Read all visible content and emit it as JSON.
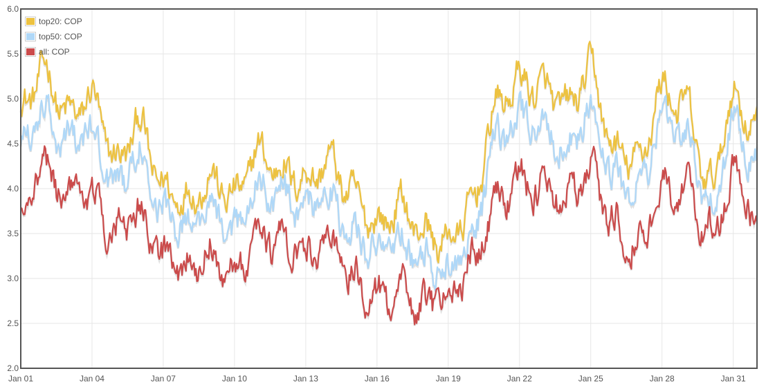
{
  "chart_data": {
    "type": "line",
    "title": "",
    "xlabel": "",
    "ylabel": "",
    "ylim": [
      2.0,
      6.0
    ],
    "yticks": [
      "2.0",
      "2.5",
      "3.0",
      "3.5",
      "4.0",
      "4.5",
      "5.0",
      "5.5",
      "6.0"
    ],
    "xlim": [
      "Jan 01",
      "Feb 01"
    ],
    "xticks": [
      "Jan 01",
      "Jan 04",
      "Jan 07",
      "Jan 10",
      "Jan 13",
      "Jan 16",
      "Jan 19",
      "Jan 22",
      "Jan 25",
      "Jan 28",
      "Jan 31"
    ],
    "grid": true,
    "legend_position": "top-left",
    "series": [
      {
        "name": "top20: COP",
        "color": "#edc240",
        "daily_values": [
          4.9,
          5.3,
          4.8,
          5.0,
          4.3,
          4.7,
          4.0,
          3.9,
          4.1,
          3.9,
          4.4,
          4.2,
          4.1,
          4.3,
          3.9,
          3.6,
          3.8,
          3.5,
          3.4,
          3.8,
          4.9,
          5.2,
          5.1,
          4.9,
          5.3,
          4.4,
          4.3,
          5.1,
          4.9,
          4.0,
          5.0,
          4.7
        ]
      },
      {
        "name": "top50: COP",
        "color": "#afd8f8",
        "daily_values": [
          4.5,
          4.9,
          4.5,
          4.6,
          4.0,
          4.4,
          3.7,
          3.6,
          3.8,
          3.5,
          4.0,
          3.9,
          3.8,
          3.9,
          3.5,
          3.3,
          3.4,
          3.2,
          3.1,
          3.5,
          4.5,
          4.8,
          4.7,
          4.5,
          4.9,
          4.1,
          4.0,
          4.7,
          4.6,
          3.7,
          4.7,
          4.3
        ]
      },
      {
        "name": "all: COP",
        "color": "#cb4b4b",
        "daily_values": [
          3.8,
          4.2,
          4.0,
          3.9,
          3.5,
          3.7,
          3.2,
          3.1,
          3.3,
          3.0,
          3.5,
          3.4,
          3.3,
          3.4,
          3.0,
          2.8,
          2.9,
          2.7,
          2.8,
          3.2,
          3.8,
          4.1,
          4.0,
          3.9,
          4.2,
          3.6,
          3.4,
          4.0,
          4.0,
          3.5,
          4.1,
          3.7
        ]
      }
    ]
  }
}
